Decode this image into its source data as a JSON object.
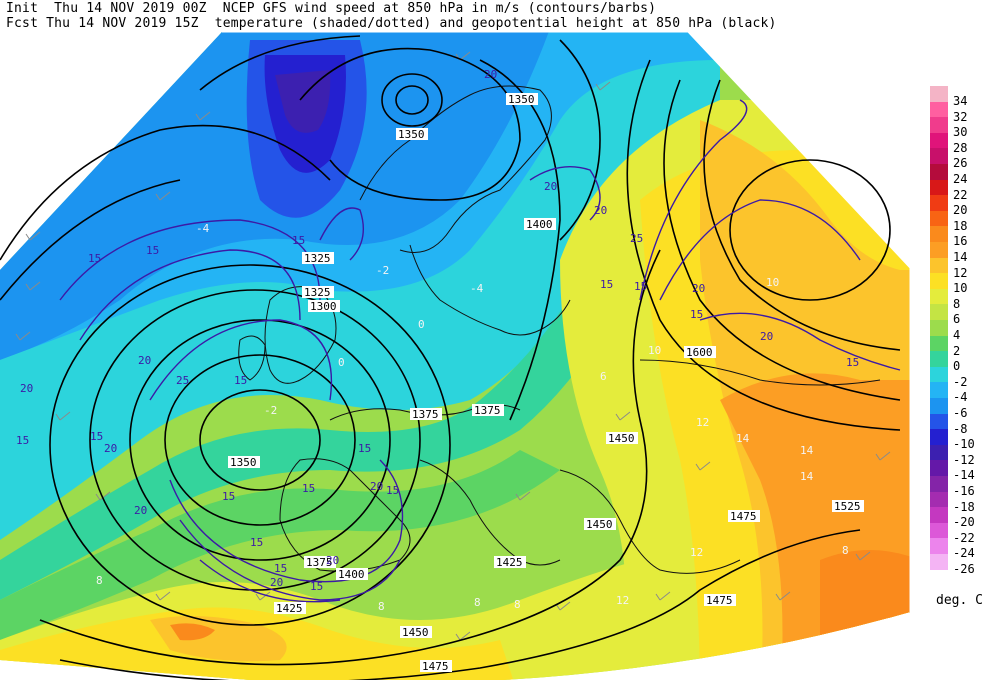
{
  "header": {
    "line1": "Init  Thu 14 NOV 2019 00Z  NCEP GFS wind speed at 850 hPa in m/s (contours/barbs)",
    "line2": "Fcst Thu 14 NOV 2019 15Z  temperature (shaded/dotted) and geopotential height at 850 hPa (black)"
  },
  "colorbar": {
    "unit": "deg. C",
    "levels": [
      "34",
      "32",
      "30",
      "28",
      "26",
      "24",
      "22",
      "20",
      "18",
      "16",
      "14",
      "12",
      "10",
      "8",
      "6",
      "4",
      "2",
      "0",
      "-2",
      "-4",
      "-6",
      "-8",
      "-10",
      "-12",
      "-14",
      "-16",
      "-18",
      "-20",
      "-22",
      "-24",
      "-26"
    ],
    "colors": [
      "#f4b4c6",
      "#ff5fa0",
      "#f03c8c",
      "#e0147a",
      "#c8106a",
      "#b40c3c",
      "#d81818",
      "#f03c14",
      "#f86414",
      "#fa8a1c",
      "#fc9e24",
      "#fcc42c",
      "#fce024",
      "#e4ec3c",
      "#c4e444",
      "#9cdc4c",
      "#5cd464",
      "#34d49c",
      "#2cd4dc",
      "#24b4f4",
      "#1c94f0",
      "#2454e8",
      "#2420d0",
      "#3c20b0",
      "#6418a8",
      "#8424a8",
      "#a42cb0",
      "#c438c0",
      "#dc58d8",
      "#ec84ec",
      "#f4b4f4"
    ]
  },
  "height_labels": [
    "1350",
    "1350",
    "1325",
    "1325",
    "1300",
    "1400",
    "1375",
    "1375",
    "1350",
    "1450",
    "1450",
    "1425",
    "1475",
    "1525",
    "1600",
    "1400",
    "1375",
    "1425",
    "1450",
    "1475",
    "1475"
  ],
  "wind_labels": [
    "15",
    "15",
    "15",
    "15",
    "20",
    "20",
    "20",
    "25",
    "15",
    "20",
    "15",
    "15",
    "20",
    "15",
    "15",
    "20",
    "20",
    "15",
    "15",
    "15",
    "20",
    "25",
    "15",
    "15",
    "20",
    "15",
    "20",
    "15",
    "20",
    "20",
    "15"
  ],
  "temp_labels": [
    "8",
    "12",
    "14",
    "14",
    "14",
    "10",
    "10",
    "12",
    "8",
    "8",
    "8",
    "-4",
    "-2",
    "-2",
    "0",
    "-4",
    "0",
    "6",
    "12",
    "8"
  ],
  "colors": {
    "height_contour": "#000000",
    "wind_contour": "#3c1aa6",
    "coastline": "#111111",
    "barb": "#777777"
  }
}
